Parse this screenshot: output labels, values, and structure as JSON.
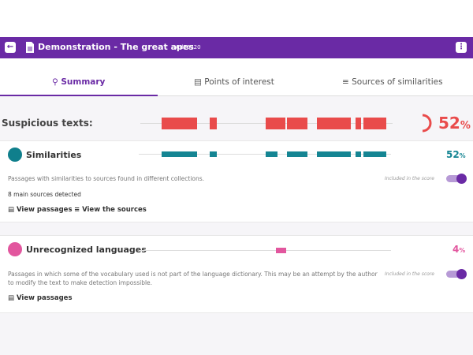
{
  "header": {
    "title": "Demonstration - The great apes",
    "id": "#d26720"
  },
  "tabs": [
    "Summary",
    "Points of interest",
    "Sources of similarities"
  ],
  "suspicious": {
    "label": "Suspicious texts:",
    "value": "52",
    "unit": "%"
  },
  "sections": [
    {
      "title": "Similarities",
      "value": "52",
      "unit": "%",
      "description": "Passages with similarities to sources found in different collections.",
      "score_note": "Included in the score",
      "sources": "8 main sources detected",
      "actions": [
        "View passages",
        "View the sources"
      ]
    },
    {
      "title": "Unrecognized languages",
      "value": "4",
      "unit": "%",
      "description": "Passages in which some of the vocabulary used is not part of the language dictionary. This may be an attempt by the author to modify the text to make detection impossible.",
      "score_note": "Included in the score",
      "actions": [
        "View passages"
      ]
    }
  ]
}
